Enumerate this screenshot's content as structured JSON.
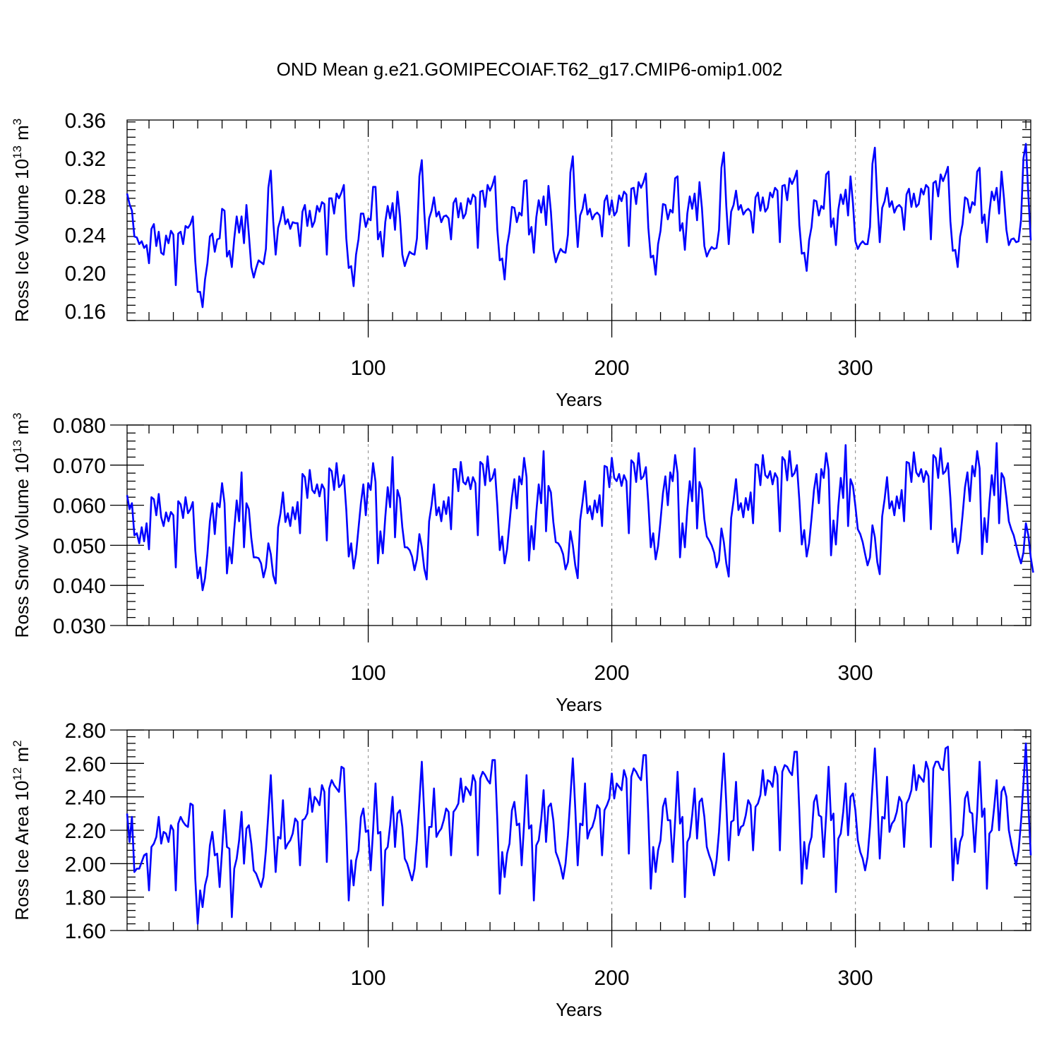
{
  "figure": {
    "title": "OND Mean g.e21.GOMIPECOIAF.T62_g17.CMIP6-omip1.002",
    "line_color": "#0000ff",
    "grid_color": "#999999"
  },
  "chart_data": [
    {
      "type": "line",
      "ylabel": "Ross Ice Volume 10",
      "ylabel_exponent": "13",
      "ylabel_unit": " m",
      "ylabel_unit_exponent": "3",
      "xlabel": "Years",
      "xlim": [
        1,
        372
      ],
      "ylim": [
        0.15,
        0.36
      ],
      "xticks": [
        100,
        200,
        300
      ],
      "xtick_labels": [
        "100",
        "200",
        "300"
      ],
      "yticks": [
        0.16,
        0.2,
        0.24,
        0.28,
        0.32,
        0.36
      ],
      "ytick_labels": [
        "0.16",
        "0.20",
        "0.24",
        "0.28",
        "0.32",
        "0.36"
      ],
      "grid": "dashed vertical at 100, 200, 300",
      "x_start": 1,
      "values": [
        0.283,
        0.272,
        0.265,
        0.238,
        0.237,
        0.23,
        0.233,
        0.226,
        0.229,
        0.21,
        0.246,
        0.251,
        0.228,
        0.243,
        0.221,
        0.219,
        0.239,
        0.231,
        0.244,
        0.24,
        0.187,
        0.241,
        0.243,
        0.23,
        0.249,
        0.247,
        0.251,
        0.259,
        0.212,
        0.18,
        0.18,
        0.164,
        0.193,
        0.21,
        0.238,
        0.241,
        0.222,
        0.235,
        0.236,
        0.267,
        0.265,
        0.217,
        0.223,
        0.206,
        0.236,
        0.259,
        0.242,
        0.259,
        0.231,
        0.271,
        0.24,
        0.206,
        0.195,
        0.205,
        0.213,
        0.211,
        0.209,
        0.225,
        0.289,
        0.307,
        0.254,
        0.219,
        0.247,
        0.256,
        0.269,
        0.251,
        0.256,
        0.246,
        0.253,
        0.252,
        0.252,
        0.228,
        0.264,
        0.271,
        0.249,
        0.265,
        0.248,
        0.254,
        0.27,
        0.264,
        0.274,
        0.272,
        0.219,
        0.278,
        0.278,
        0.262,
        0.283,
        0.278,
        0.284,
        0.292,
        0.236,
        0.205,
        0.207,
        0.186,
        0.219,
        0.235,
        0.262,
        0.262,
        0.248,
        0.257,
        0.255,
        0.29,
        0.29,
        0.235,
        0.243,
        0.217,
        0.253,
        0.27,
        0.257,
        0.273,
        0.245,
        0.285,
        0.259,
        0.219,
        0.207,
        0.215,
        0.222,
        0.22,
        0.219,
        0.236,
        0.301,
        0.318,
        0.264,
        0.225,
        0.257,
        0.265,
        0.279,
        0.259,
        0.264,
        0.253,
        0.259,
        0.26,
        0.257,
        0.235,
        0.273,
        0.278,
        0.258,
        0.273,
        0.257,
        0.262,
        0.278,
        0.272,
        0.282,
        0.279,
        0.226,
        0.285,
        0.286,
        0.269,
        0.292,
        0.286,
        0.292,
        0.301,
        0.245,
        0.213,
        0.215,
        0.193,
        0.228,
        0.243,
        0.269,
        0.268,
        0.253,
        0.263,
        0.26,
        0.296,
        0.297,
        0.24,
        0.248,
        0.221,
        0.258,
        0.276,
        0.263,
        0.28,
        0.25,
        0.291,
        0.264,
        0.224,
        0.211,
        0.219,
        0.225,
        0.222,
        0.221,
        0.24,
        0.305,
        0.322,
        0.267,
        0.227,
        0.26,
        0.267,
        0.282,
        0.261,
        0.267,
        0.256,
        0.261,
        0.263,
        0.26,
        0.238,
        0.275,
        0.281,
        0.261,
        0.276,
        0.26,
        0.264,
        0.281,
        0.275,
        0.285,
        0.282,
        0.228,
        0.288,
        0.289,
        0.272,
        0.295,
        0.289,
        0.295,
        0.304,
        0.247,
        0.216,
        0.218,
        0.198,
        0.23,
        0.244,
        0.272,
        0.271,
        0.256,
        0.266,
        0.263,
        0.299,
        0.301,
        0.244,
        0.252,
        0.224,
        0.262,
        0.28,
        0.267,
        0.283,
        0.255,
        0.295,
        0.268,
        0.228,
        0.217,
        0.223,
        0.227,
        0.225,
        0.226,
        0.245,
        0.31,
        0.326,
        0.27,
        0.23,
        0.264,
        0.271,
        0.286,
        0.266,
        0.271,
        0.261,
        0.265,
        0.267,
        0.264,
        0.242,
        0.279,
        0.284,
        0.265,
        0.279,
        0.264,
        0.268,
        0.284,
        0.279,
        0.289,
        0.286,
        0.232,
        0.291,
        0.292,
        0.276,
        0.299,
        0.293,
        0.299,
        0.307,
        0.25,
        0.22,
        0.221,
        0.202,
        0.234,
        0.248,
        0.276,
        0.275,
        0.26,
        0.27,
        0.267,
        0.303,
        0.306,
        0.248,
        0.257,
        0.229,
        0.266,
        0.282,
        0.272,
        0.287,
        0.26,
        0.301,
        0.273,
        0.233,
        0.225,
        0.23,
        0.233,
        0.23,
        0.23,
        0.248,
        0.314,
        0.331,
        0.276,
        0.232,
        0.268,
        0.275,
        0.289,
        0.269,
        0.275,
        0.263,
        0.269,
        0.271,
        0.268,
        0.245,
        0.282,
        0.288,
        0.269,
        0.283,
        0.269,
        0.272,
        0.288,
        0.282,
        0.292,
        0.289,
        0.235,
        0.294,
        0.296,
        0.28,
        0.303,
        0.296,
        0.303,
        0.311,
        0.254,
        0.223,
        0.224,
        0.206,
        0.238,
        0.251,
        0.279,
        0.277,
        0.263,
        0.274,
        0.271,
        0.306,
        0.31,
        0.252,
        0.261,
        0.232,
        0.263,
        0.285,
        0.276,
        0.289,
        0.262,
        0.306,
        0.278,
        0.245,
        0.229,
        0.235,
        0.236,
        0.232,
        0.233,
        0.255,
        0.32,
        0.335,
        0.282,
        0.234
      ]
    },
    {
      "type": "line",
      "ylabel": "Ross Snow Volume 10",
      "ylabel_exponent": "13",
      "ylabel_unit": " m",
      "ylabel_unit_exponent": "3",
      "xlabel": "Years",
      "xlim": [
        1,
        372
      ],
      "ylim": [
        0.03,
        0.08
      ],
      "xticks": [
        100,
        200,
        300
      ],
      "xtick_labels": [
        "100",
        "200",
        "300"
      ],
      "yticks": [
        0.03,
        0.04,
        0.05,
        0.06,
        0.07,
        0.08
      ],
      "ytick_labels": [
        "0.030",
        "0.040",
        "0.050",
        "0.060",
        "0.070",
        "0.080"
      ],
      "grid": "dashed vertical at 100, 200, 300",
      "x_start": 1,
      "values": [
        0.0625,
        0.059,
        0.0605,
        0.0525,
        0.053,
        0.0505,
        0.0545,
        0.051,
        0.0555,
        0.049,
        0.062,
        0.0615,
        0.0575,
        0.0628,
        0.057,
        0.0548,
        0.0582,
        0.056,
        0.0583,
        0.0575,
        0.0445,
        0.061,
        0.0602,
        0.0568,
        0.062,
        0.058,
        0.059,
        0.0608,
        0.0488,
        0.0418,
        0.0445,
        0.0388,
        0.0418,
        0.048,
        0.056,
        0.0605,
        0.0528,
        0.0605,
        0.0595,
        0.0655,
        0.0605,
        0.043,
        0.0495,
        0.0455,
        0.054,
        0.0612,
        0.056,
        0.0682,
        0.0495,
        0.0605,
        0.059,
        0.0518,
        0.047,
        0.047,
        0.0468,
        0.0455,
        0.042,
        0.0445,
        0.0505,
        0.0478,
        0.0425,
        0.0405,
        0.0545,
        0.058,
        0.0632,
        0.0558,
        0.058,
        0.0548,
        0.0595,
        0.0565,
        0.0608,
        0.053,
        0.0678,
        0.067,
        0.0618,
        0.0688,
        0.0638,
        0.063,
        0.0652,
        0.0622,
        0.0652,
        0.064,
        0.0512,
        0.0692,
        0.0685,
        0.0638,
        0.0705,
        0.0645,
        0.0652,
        0.0675,
        0.0588,
        0.0472,
        0.0505,
        0.0442,
        0.0478,
        0.0542,
        0.0605,
        0.0652,
        0.0575,
        0.0655,
        0.0638,
        0.0705,
        0.0658,
        0.0455,
        0.0535,
        0.048,
        0.057,
        0.0645,
        0.0595,
        0.072,
        0.052,
        0.0638,
        0.0618,
        0.0545,
        0.0495,
        0.0495,
        0.0488,
        0.0472,
        0.0438,
        0.0465,
        0.0528,
        0.0495,
        0.0442,
        0.0415,
        0.056,
        0.06,
        0.0652,
        0.0575,
        0.0595,
        0.056,
        0.061,
        0.0578,
        0.062,
        0.054,
        0.069,
        0.069,
        0.0635,
        0.0708,
        0.0658,
        0.0652,
        0.067,
        0.064,
        0.067,
        0.0655,
        0.0525,
        0.0708,
        0.0702,
        0.065,
        0.0722,
        0.066,
        0.0668,
        0.069,
        0.06,
        0.0488,
        0.0522,
        0.0455,
        0.049,
        0.0555,
        0.062,
        0.0665,
        0.0592,
        0.0672,
        0.0652,
        0.0718,
        0.067,
        0.0462,
        0.0548,
        0.049,
        0.0582,
        0.0652,
        0.0605,
        0.0735,
        0.0535,
        0.0648,
        0.0632,
        0.0558,
        0.0508,
        0.0505,
        0.0495,
        0.0478,
        0.044,
        0.0458,
        0.0535,
        0.05,
        0.045,
        0.0418,
        0.0562,
        0.0608,
        0.066,
        0.058,
        0.0598,
        0.0565,
        0.0612,
        0.0582,
        0.0625,
        0.0548,
        0.0698,
        0.0695,
        0.0645,
        0.0718,
        0.0668,
        0.066,
        0.0678,
        0.0648,
        0.0675,
        0.066,
        0.053,
        0.0712,
        0.0705,
        0.0658,
        0.073,
        0.0665,
        0.0672,
        0.0695,
        0.0605,
        0.0495,
        0.053,
        0.0465,
        0.0498,
        0.0562,
        0.063,
        0.0672,
        0.06,
        0.0682,
        0.066,
        0.0725,
        0.068,
        0.047,
        0.0555,
        0.0495,
        0.059,
        0.066,
        0.061,
        0.0742,
        0.0542,
        0.0658,
        0.064,
        0.0565,
        0.0522,
        0.0512,
        0.05,
        0.0482,
        0.0445,
        0.0462,
        0.0542,
        0.0508,
        0.0455,
        0.0422,
        0.0568,
        0.0612,
        0.0665,
        0.0588,
        0.0605,
        0.057,
        0.0618,
        0.0588,
        0.0632,
        0.0555,
        0.0702,
        0.07,
        0.065,
        0.0725,
        0.0675,
        0.0668,
        0.0685,
        0.0652,
        0.068,
        0.0668,
        0.0535,
        0.072,
        0.0712,
        0.0662,
        0.0735,
        0.0672,
        0.068,
        0.07,
        0.0612,
        0.0502,
        0.0538,
        0.0472,
        0.0505,
        0.0568,
        0.0638,
        0.0678,
        0.0605,
        0.069,
        0.0668,
        0.073,
        0.0688,
        0.0475,
        0.0562,
        0.0502,
        0.0598,
        0.0668,
        0.0618,
        0.075,
        0.0548,
        0.0665,
        0.0648,
        0.0598,
        0.054,
        0.0528,
        0.0508,
        0.0478,
        0.045,
        0.047,
        0.055,
        0.052,
        0.0458,
        0.0428,
        0.0572,
        0.0615,
        0.067,
        0.0592,
        0.061,
        0.0575,
        0.0622,
        0.0592,
        0.0638,
        0.056,
        0.0708,
        0.0705,
        0.0658,
        0.0732,
        0.0682,
        0.0672,
        0.069,
        0.0658,
        0.0685,
        0.0672,
        0.054,
        0.0725,
        0.0718,
        0.0668,
        0.0742,
        0.0678,
        0.0685,
        0.0705,
        0.0618,
        0.0508,
        0.0542,
        0.048,
        0.0512,
        0.0575,
        0.0645,
        0.0682,
        0.061,
        0.0698,
        0.0672,
        0.0735,
        0.0692,
        0.0478,
        0.0568,
        0.0508,
        0.0605,
        0.0675,
        0.0625,
        0.0755,
        0.0555,
        0.068,
        0.0668,
        0.0618,
        0.056,
        0.054,
        0.0525,
        0.05,
        0.0475,
        0.0455,
        0.0482,
        0.0555,
        0.0525,
        0.047,
        0.0432
      ]
    },
    {
      "type": "line",
      "ylabel": "Ross Ice Area 10",
      "ylabel_exponent": "12",
      "ylabel_unit": " m",
      "ylabel_unit_exponent": "2",
      "xlabel": "Years",
      "xlim": [
        1,
        372
      ],
      "ylim": [
        1.6,
        2.8
      ],
      "xticks": [
        100,
        200,
        300
      ],
      "xtick_labels": [
        "100",
        "200",
        "300"
      ],
      "yticks": [
        1.6,
        1.8,
        2.0,
        2.2,
        2.4,
        2.6,
        2.8
      ],
      "ytick_labels": [
        "1.60",
        "1.80",
        "2.00",
        "2.20",
        "2.40",
        "2.60",
        "2.80"
      ],
      "grid": "dashed vertical at 100, 200, 300",
      "x_start": 1,
      "values": [
        2.3,
        2.13,
        2.28,
        1.95,
        1.97,
        1.97,
        2.01,
        2.05,
        2.06,
        1.84,
        2.1,
        2.12,
        2.16,
        2.28,
        2.12,
        2.19,
        2.18,
        2.13,
        2.23,
        2.2,
        1.84,
        2.24,
        2.28,
        2.25,
        2.23,
        2.22,
        2.36,
        2.35,
        1.91,
        1.64,
        1.84,
        1.74,
        1.87,
        1.93,
        2.11,
        2.19,
        2.05,
        2.06,
        1.86,
        2.08,
        2.32,
        2.1,
        2.09,
        1.68,
        1.97,
        2.03,
        2.14,
        2.31,
        2.0,
        2.21,
        2.23,
        2.12,
        1.96,
        1.94,
        1.9,
        1.86,
        1.92,
        2.08,
        2.3,
        2.53,
        2.22,
        1.95,
        2.16,
        2.15,
        2.38,
        2.09,
        2.12,
        2.14,
        2.18,
        2.27,
        2.25,
        1.99,
        2.26,
        2.27,
        2.3,
        2.45,
        2.31,
        2.4,
        2.38,
        2.35,
        2.47,
        2.43,
        2.01,
        2.45,
        2.5,
        2.47,
        2.45,
        2.43,
        2.58,
        2.57,
        2.22,
        1.78,
        2.02,
        1.87,
        2.02,
        2.08,
        2.28,
        2.33,
        2.19,
        2.2,
        1.96,
        2.2,
        2.48,
        2.18,
        2.19,
        1.75,
        2.08,
        2.1,
        2.23,
        2.4,
        2.1,
        2.3,
        2.32,
        2.22,
        2.03,
        2.0,
        1.95,
        1.9,
        1.97,
        2.14,
        2.37,
        2.61,
        2.3,
        1.98,
        2.22,
        2.22,
        2.45,
        2.16,
        2.19,
        2.21,
        2.26,
        2.33,
        2.31,
        2.05,
        2.31,
        2.33,
        2.36,
        2.51,
        2.37,
        2.46,
        2.44,
        2.41,
        2.53,
        2.49,
        2.05,
        2.51,
        2.55,
        2.53,
        2.5,
        2.48,
        2.62,
        2.62,
        2.26,
        1.82,
        2.07,
        1.92,
        2.06,
        2.12,
        2.32,
        2.37,
        2.23,
        2.24,
        1.99,
        2.24,
        2.53,
        2.21,
        2.23,
        1.78,
        2.11,
        2.14,
        2.26,
        2.44,
        2.13,
        2.34,
        2.36,
        2.26,
        2.07,
        2.03,
        1.98,
        1.91,
        2.0,
        2.17,
        2.4,
        2.63,
        2.33,
        1.99,
        2.24,
        2.23,
        2.48,
        2.15,
        2.2,
        2.22,
        2.27,
        2.35,
        2.33,
        2.05,
        2.32,
        2.35,
        2.39,
        2.54,
        2.39,
        2.48,
        2.46,
        2.44,
        2.56,
        2.51,
        2.06,
        2.52,
        2.57,
        2.55,
        2.52,
        2.5,
        2.65,
        2.65,
        2.28,
        1.85,
        2.1,
        1.95,
        2.08,
        2.14,
        2.34,
        2.39,
        2.26,
        2.26,
        2.01,
        2.26,
        2.55,
        2.24,
        2.28,
        1.8,
        2.13,
        2.16,
        2.29,
        2.45,
        2.15,
        2.37,
        2.39,
        2.28,
        2.1,
        2.05,
        2.01,
        1.93,
        2.02,
        2.19,
        2.43,
        2.66,
        2.36,
        2.02,
        2.25,
        2.26,
        2.49,
        2.17,
        2.22,
        2.23,
        2.29,
        2.38,
        2.35,
        2.08,
        2.34,
        2.36,
        2.41,
        2.56,
        2.41,
        2.5,
        2.49,
        2.46,
        2.58,
        2.53,
        2.08,
        2.55,
        2.59,
        2.58,
        2.55,
        2.53,
        2.67,
        2.67,
        2.31,
        1.88,
        2.13,
        1.97,
        2.11,
        2.16,
        2.37,
        2.41,
        2.29,
        2.28,
        2.04,
        2.29,
        2.58,
        2.26,
        2.3,
        1.83,
        2.15,
        2.18,
        2.31,
        2.48,
        2.17,
        2.4,
        2.42,
        2.32,
        2.14,
        2.07,
        2.03,
        1.96,
        2.04,
        2.22,
        2.46,
        2.69,
        2.39,
        2.03,
        2.28,
        2.27,
        2.52,
        2.19,
        2.24,
        2.26,
        2.31,
        2.4,
        2.37,
        2.1,
        2.36,
        2.39,
        2.44,
        2.59,
        2.44,
        2.53,
        2.51,
        2.49,
        2.61,
        2.56,
        2.1,
        2.57,
        2.61,
        2.61,
        2.57,
        2.56,
        2.69,
        2.7,
        2.34,
        1.9,
        2.15,
        2.0,
        2.13,
        2.17,
        2.39,
        2.43,
        2.31,
        2.3,
        2.07,
        2.31,
        2.61,
        2.28,
        2.33,
        1.85,
        2.18,
        2.2,
        2.34,
        2.5,
        2.2,
        2.43,
        2.46,
        2.4,
        2.2,
        2.12,
        2.05,
        1.99,
        2.08,
        2.25,
        2.48,
        2.72,
        2.36,
        2.05
      ]
    }
  ]
}
